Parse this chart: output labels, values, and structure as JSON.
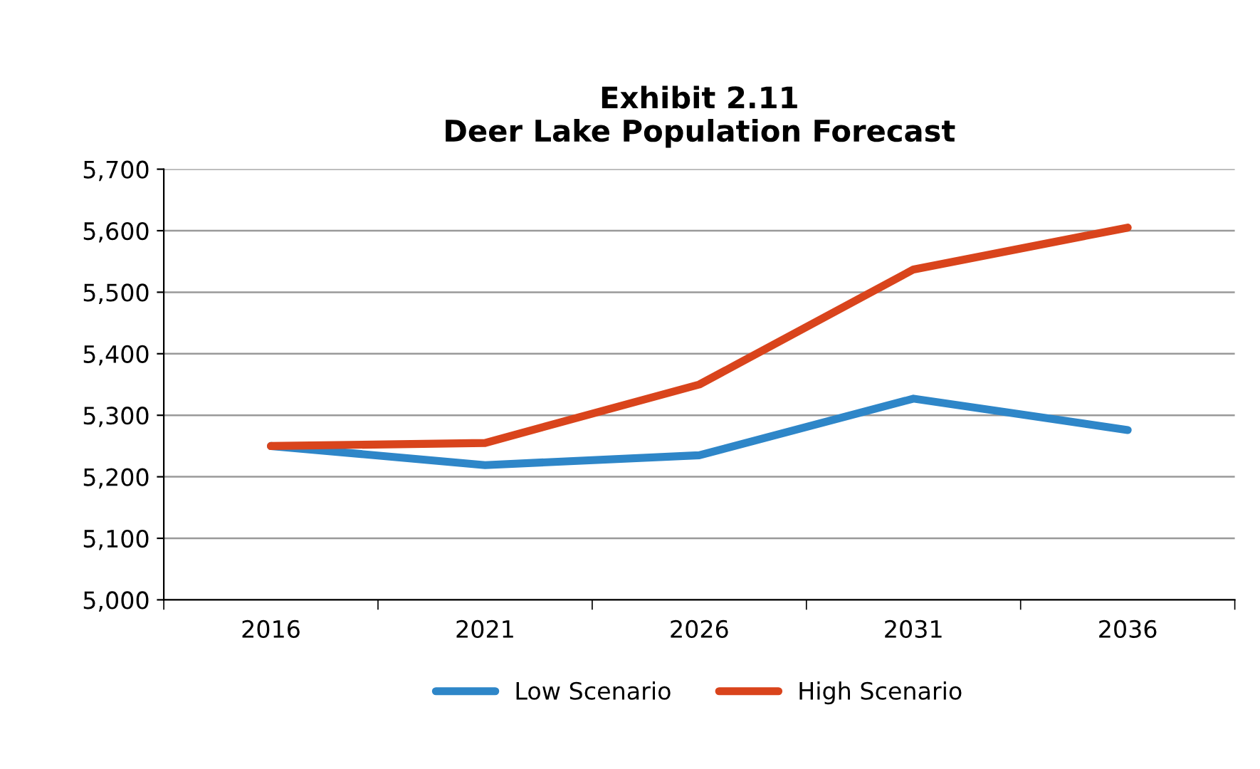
{
  "chart_data": {
    "type": "line",
    "title": "Exhibit 2.11\nDeer Lake Population Forecast",
    "categories": [
      "2016",
      "2021",
      "2026",
      "2031",
      "2036"
    ],
    "series": [
      {
        "name": "Low Scenario",
        "color": "#2e86c8",
        "values": [
          5250,
          5219,
          5235,
          5327,
          5276
        ]
      },
      {
        "name": "High Scenario",
        "color": "#d9441c",
        "values": [
          5250,
          5255,
          5350,
          5537,
          5605
        ]
      }
    ],
    "ylim": [
      5000,
      5700
    ],
    "yticks": [
      {
        "value": 5000,
        "label": "5,000"
      },
      {
        "value": 5100,
        "label": "5,100"
      },
      {
        "value": 5200,
        "label": "5,200"
      },
      {
        "value": 5300,
        "label": "5,300"
      },
      {
        "value": 5400,
        "label": "5,400"
      },
      {
        "value": 5500,
        "label": "5,500"
      },
      {
        "value": 5600,
        "label": "5,600"
      },
      {
        "value": 5700,
        "label": "5,700"
      }
    ],
    "grid": "y",
    "legend": "bottom",
    "marker": "none",
    "line_style": "solid"
  }
}
